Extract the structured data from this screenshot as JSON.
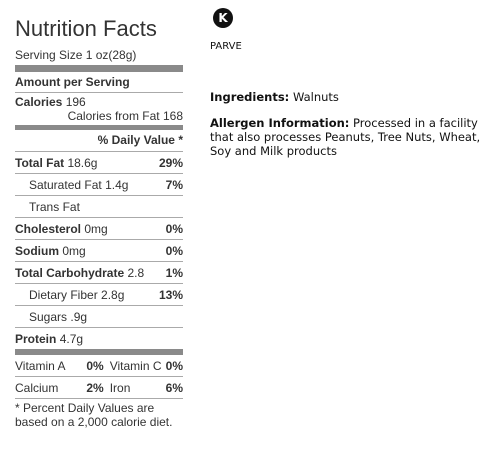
{
  "label": {
    "title": "Nutrition Facts",
    "serving_size": "Serving Size 1 oz(28g)",
    "amount_per_serving": "Amount per Serving",
    "calories": {
      "name": "Calories",
      "value": "196"
    },
    "calories_from_fat": {
      "name": "Calories from Fat",
      "value": "168"
    },
    "daily_value_header": "% Daily Value *",
    "rows": [
      {
        "name": "Total Fat",
        "amount": "18.6g",
        "dv": "29%",
        "bold": true
      },
      {
        "name": "Saturated Fat",
        "amount": "1.4g",
        "dv": "7%",
        "indent": true
      },
      {
        "name": "Trans Fat",
        "indent": true
      },
      {
        "name": "Cholesterol",
        "amount": "0mg",
        "dv": "0%",
        "bold": true
      },
      {
        "name": "Sodium",
        "amount": "0mg",
        "dv": "0%",
        "bold": true
      },
      {
        "name": "Total Carbohydrate",
        "amount": "2.8",
        "dv": "1%",
        "bold": true
      },
      {
        "name": "Dietary Fiber",
        "amount": "2.8g",
        "dv": "13%",
        "indent": true
      },
      {
        "name": "Sugars",
        "amount": ".9g",
        "indent": true
      },
      {
        "name": "Protein",
        "amount": "4.7g",
        "bold": true
      }
    ],
    "vitamins": [
      [
        {
          "name": "Vitamin A",
          "value": "0%"
        },
        {
          "name": "Vitamin C",
          "value": "0%"
        }
      ],
      [
        {
          "name": "Calcium",
          "value": "2%"
        },
        {
          "name": "Iron",
          "value": "6%"
        }
      ]
    ],
    "footnote": [
      "* Percent Daily Values are",
      "based on a 2,000 calorie diet."
    ]
  },
  "kosher": {
    "symbol": "K",
    "label": "PARVE"
  },
  "ingredients": {
    "label": "Ingredients:",
    "text": "Walnuts"
  },
  "allergen": {
    "label": "Allergen Information:",
    "text": "Processed in a facility that also processes Peanuts, Tree Nuts, Wheat, Soy and Milk products"
  }
}
